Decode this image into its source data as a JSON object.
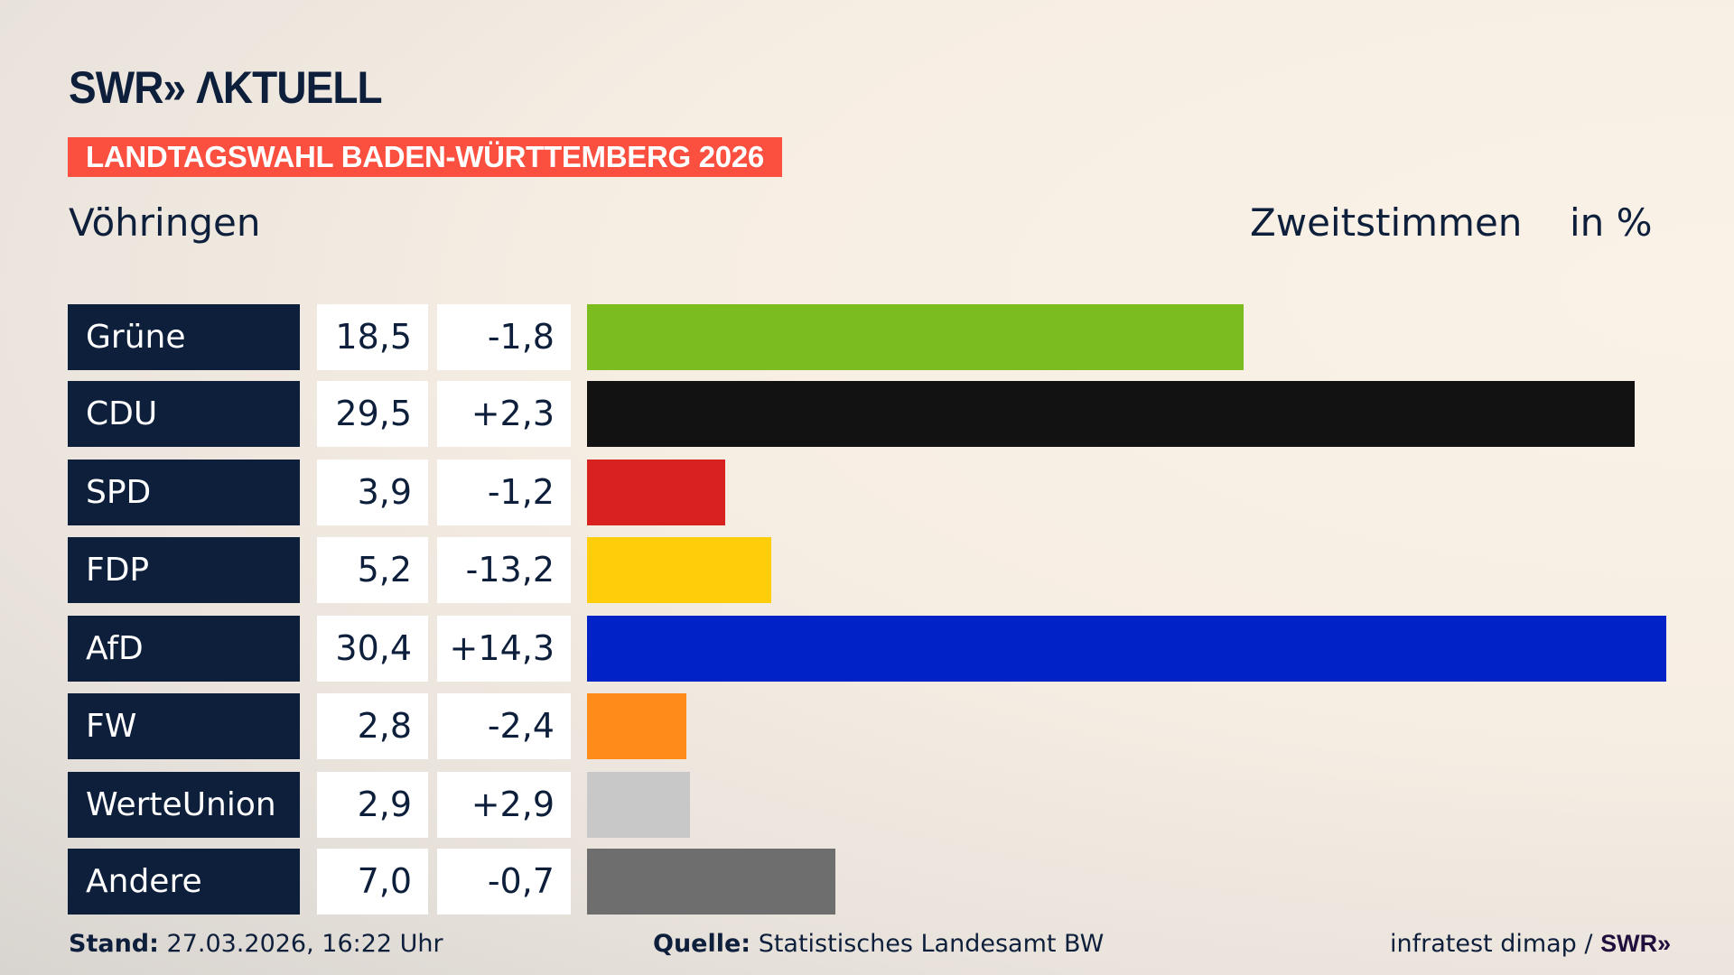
{
  "header": {
    "logo": "SWR» ΛKTUELL",
    "banner": "LANDTAGSWAHL BADEN-WÜRTTEMBERG 2026",
    "place": "Vöhringen",
    "vote_type": "Zweitstimmen",
    "unit": "in %"
  },
  "chart_data": {
    "type": "bar",
    "orientation": "horizontal",
    "xlim": [
      0,
      30.4
    ],
    "categories": [
      "Grüne",
      "CDU",
      "SPD",
      "FDP",
      "AfD",
      "FW",
      "WerteUnion",
      "Andere"
    ],
    "values": [
      "18,5",
      "29,5",
      "3,9",
      "5,2",
      "30,4",
      "2,8",
      "2,9",
      "7,0"
    ],
    "numeric_values": [
      18.5,
      29.5,
      3.9,
      5.2,
      30.4,
      2.8,
      2.9,
      7.0
    ],
    "diffs": [
      "-1,8",
      "+2,3",
      "-1,2",
      "-13,2",
      "+14,3",
      "-2,4",
      "+2,9",
      "-0,7"
    ],
    "colors": [
      "#7bbd1e",
      "#121212",
      "#d9221f",
      "#ffcd09",
      "#0022c6",
      "#ff8c19",
      "#c8c8c8",
      "#6e6e6e"
    ]
  },
  "footer": {
    "stand_label": "Stand:",
    "stand_value": "27.03.2026, 16:22 Uhr",
    "source_label": "Quelle:",
    "source_value": "Statistisches Landesamt BW",
    "credit": "infratest dimap /",
    "credit_logo": "SWR»"
  }
}
